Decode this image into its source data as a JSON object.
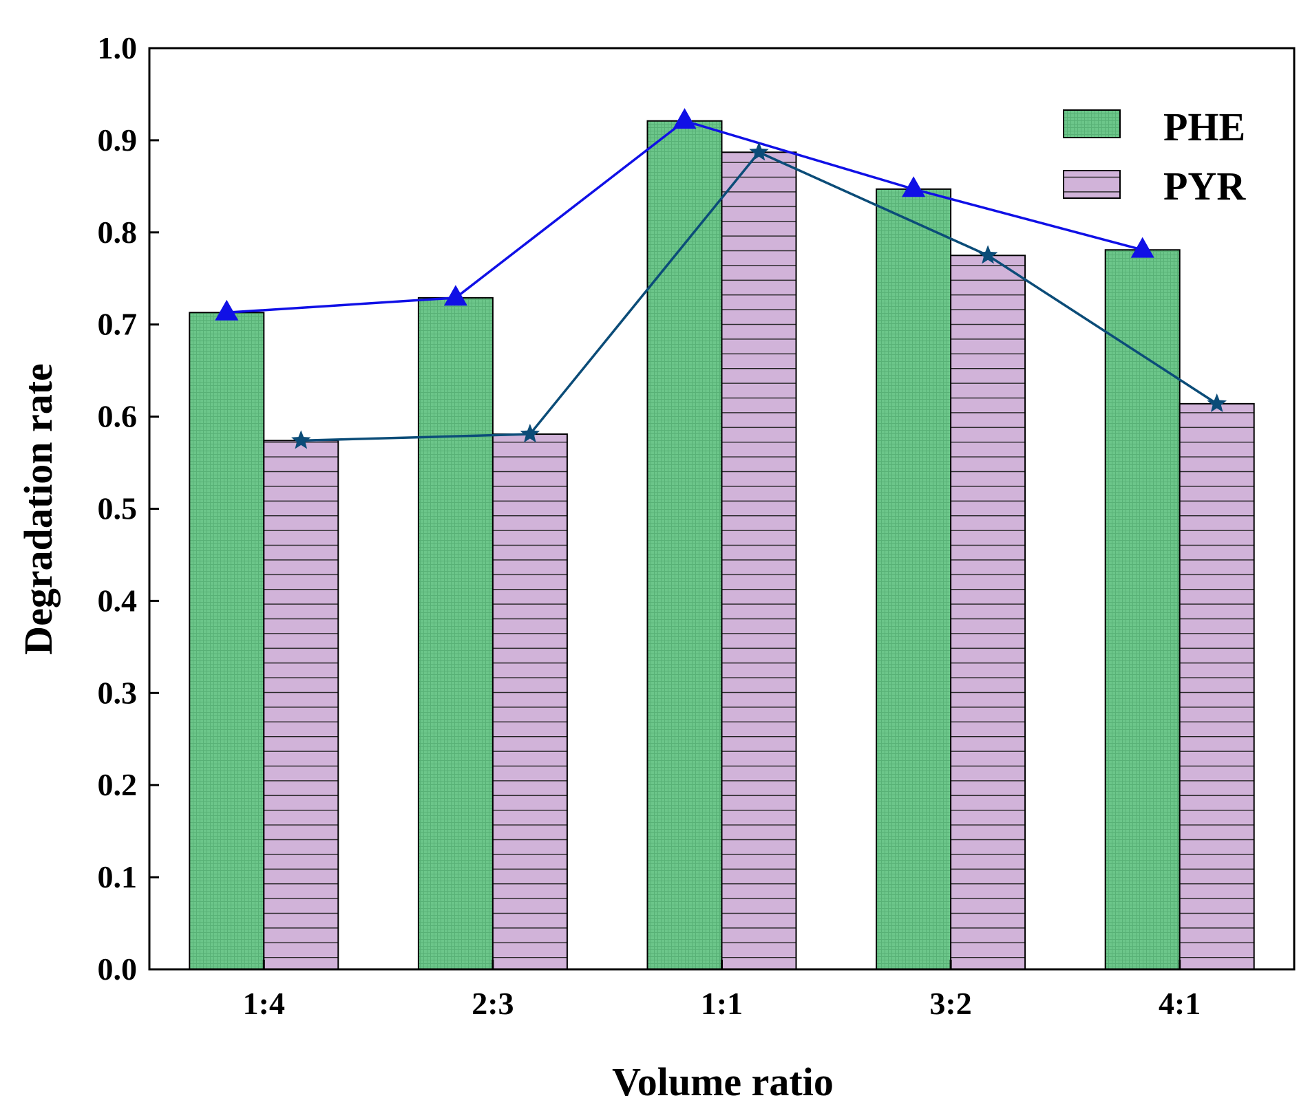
{
  "chart_data": {
    "type": "bar",
    "title": "",
    "xlabel": "Volume ratio",
    "ylabel": "Degradation rate",
    "categories": [
      "1:4",
      "2:3",
      "1:1",
      "3:2",
      "4:1"
    ],
    "ylim": [
      0.0,
      1.0
    ],
    "yticks": [
      "0.0",
      "0.1",
      "0.2",
      "0.3",
      "0.4",
      "0.5",
      "0.6",
      "0.7",
      "0.8",
      "0.9",
      "1.0"
    ],
    "legend_position": "top-right",
    "grid": false,
    "series": [
      {
        "name": "PHE",
        "values": [
          0.713,
          0.729,
          0.921,
          0.847,
          0.781
        ],
        "bar_fill": "#6cc68a",
        "line_color": "#1010e6",
        "marker": "triangle"
      },
      {
        "name": "PYR",
        "values": [
          0.574,
          0.581,
          0.887,
          0.775,
          0.614
        ],
        "bar_fill": "#d1b3d9",
        "line_color": "#0b4c78",
        "marker": "star"
      }
    ]
  }
}
